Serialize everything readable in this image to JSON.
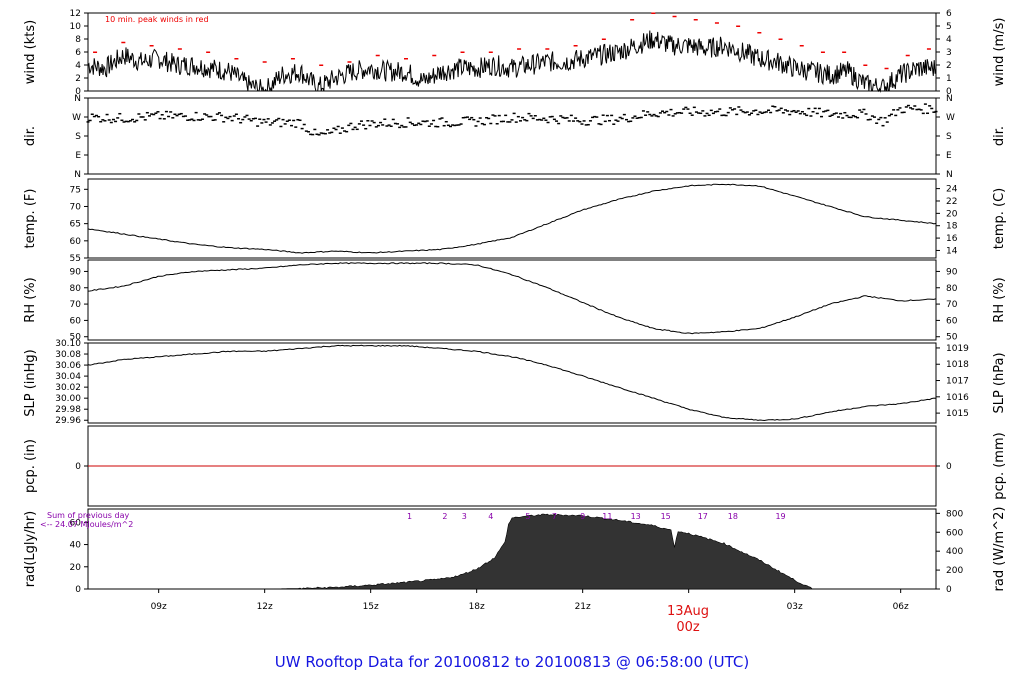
{
  "footer_title": "UW Rooftop Data for 20100812  to  20100813 @ 06:58:00  (UTC)",
  "date_marker": {
    "date": "13Aug",
    "time": "00z",
    "color": "#dd1111"
  },
  "x_axis": {
    "start_hour": 7.0,
    "end_hour": 31.0,
    "ticks": [
      "09z",
      "12z",
      "15z",
      "18z",
      "21z",
      "",
      "03z",
      "06z"
    ],
    "tick_hours": [
      9,
      12,
      15,
      18,
      21,
      24,
      27,
      30
    ]
  },
  "colors": {
    "peak": "#ee0000",
    "zero_line": "#cc0000",
    "rad_note": "#8800aa",
    "rad_fill": "#333333"
  },
  "chart_data": [
    {
      "id": "wind",
      "type": "line",
      "ylabel_left": "wind (kts)",
      "ylabel_right": "wind (m/s)",
      "annotation": "10 min. peak winds in red",
      "ylim": [
        0,
        12
      ],
      "yticks": [
        "0",
        "2",
        "4",
        "6",
        "8",
        "10",
        "12"
      ],
      "yticks_right": [
        "0",
        "1",
        "2",
        "3",
        "4",
        "5",
        "6"
      ],
      "series": [
        {
          "x": [
            7,
            7.5,
            8,
            8.5,
            9,
            9.5,
            10,
            10.5,
            11,
            11.5,
            12,
            12.5,
            13,
            13.5,
            14,
            14.5,
            15,
            15.5,
            16,
            16.5,
            17,
            17.5,
            18,
            18.5,
            19,
            19.5,
            20,
            20.5,
            21,
            21.5,
            22,
            22.5,
            23,
            23.5,
            24,
            24.5,
            25,
            25.5,
            26,
            26.5,
            27,
            27.5,
            28,
            28.5,
            29,
            29.5,
            30,
            30.5,
            31
          ],
          "y": [
            4,
            3.5,
            5.5,
            4.5,
            5,
            4,
            4,
            3.5,
            3,
            1,
            0,
            2.5,
            3,
            0.5,
            2,
            3,
            3.5,
            3,
            3,
            1.5,
            3,
            3.5,
            3.5,
            4,
            3.5,
            4,
            4.5,
            4.5,
            5,
            5.5,
            6,
            7,
            8,
            7,
            7,
            6.5,
            7,
            6,
            5,
            4.5,
            3.5,
            3,
            2.5,
            3,
            1,
            0.5,
            2.5,
            3.5,
            3.5
          ]
        },
        {
          "name": "10 min. peak winds",
          "x": [
            7.2,
            8,
            8.8,
            9.6,
            10.4,
            11.2,
            12,
            12.8,
            13.6,
            14.4,
            15.2,
            16,
            16.8,
            17.6,
            18.4,
            19.2,
            20,
            20.8,
            21.6,
            22.4,
            23,
            23.6,
            24.2,
            24.8,
            25.4,
            26,
            26.6,
            27.2,
            27.8,
            28.4,
            29,
            29.6,
            30.2,
            30.8
          ],
          "y": [
            6,
            7.5,
            7,
            6.5,
            6,
            5,
            4.5,
            5,
            4,
            4.5,
            5.5,
            5,
            5.5,
            6,
            6,
            6.5,
            6.5,
            7,
            8,
            11,
            12,
            11.5,
            11,
            10.5,
            10,
            9,
            8,
            7,
            6,
            6,
            4,
            3.5,
            5.5,
            6.5
          ]
        }
      ]
    },
    {
      "id": "dir",
      "type": "scatter",
      "ylabel_left": "dir.",
      "ylabel_right": "dir.",
      "ylim": [
        0,
        360
      ],
      "yticks": [
        "N",
        "E",
        "S",
        "W",
        "N"
      ],
      "yticks_right": [
        "N",
        "E",
        "S",
        "W",
        "N"
      ],
      "series": [
        {
          "x": [
            7,
            8,
            9,
            10,
            11,
            12,
            13,
            13.5,
            14,
            14.5,
            15,
            16,
            17,
            18,
            19,
            20,
            21,
            22,
            23,
            24,
            25,
            26,
            27,
            28,
            29,
            29.5,
            30,
            31
          ],
          "y": [
            270,
            265,
            275,
            275,
            270,
            245,
            245,
            180,
            200,
            230,
            240,
            245,
            245,
            250,
            270,
            265,
            255,
            260,
            290,
            295,
            295,
            300,
            300,
            285,
            285,
            250,
            310,
            310
          ]
        }
      ]
    },
    {
      "id": "temp",
      "type": "line",
      "ylabel_left": "temp. (F)",
      "ylabel_right": "temp. (C)",
      "ylim": [
        55,
        78
      ],
      "yticks": [
        "55",
        "60",
        "65",
        "70",
        "75"
      ],
      "yticks_right": [
        "14",
        "16",
        "18",
        "20",
        "22",
        "24"
      ],
      "series": [
        {
          "x": [
            7,
            8,
            9,
            10,
            11,
            12,
            13,
            14,
            15,
            16,
            17,
            18,
            19,
            20,
            21,
            22,
            23,
            24,
            25,
            26,
            27,
            28,
            29,
            30,
            31
          ],
          "y": [
            63.5,
            62,
            60.5,
            59,
            58,
            57.5,
            56.5,
            57,
            56.5,
            57,
            57.5,
            59,
            61,
            65,
            69,
            72,
            74.5,
            76,
            76.5,
            76,
            73,
            70,
            67,
            66,
            65
          ]
        }
      ]
    },
    {
      "id": "rh",
      "type": "line",
      "ylabel_left": "RH (%)",
      "ylabel_right": "RH (%)",
      "ylim": [
        48,
        97
      ],
      "yticks": [
        "50",
        "60",
        "70",
        "80",
        "90"
      ],
      "yticks_right": [
        "50",
        "60",
        "70",
        "80",
        "90"
      ],
      "series": [
        {
          "x": [
            7,
            8,
            9,
            10,
            11,
            12,
            13,
            14,
            15,
            16,
            17,
            18,
            19,
            20,
            21,
            22,
            23,
            24,
            25,
            26,
            27,
            28,
            29,
            30,
            31
          ],
          "y": [
            78,
            81,
            87,
            90,
            91,
            92,
            94,
            95,
            95,
            95,
            95,
            94,
            88,
            80,
            71,
            62,
            55,
            52,
            53,
            55,
            62,
            70,
            75,
            72,
            73
          ]
        }
      ]
    },
    {
      "id": "slp",
      "type": "line",
      "ylabel_left": "SLP (inHg)",
      "ylabel_right": "SLP (hPa)",
      "ylim": [
        29.955,
        30.1
      ],
      "yticks": [
        "29.96",
        "29.98",
        "30.00",
        "30.02",
        "30.04",
        "30.06",
        "30.08",
        "30.10"
      ],
      "yticks_right": [
        "1015",
        "1016",
        "1017",
        "1018",
        "1019"
      ],
      "series": [
        {
          "x": [
            7,
            8,
            9,
            10,
            11,
            12,
            13,
            14,
            15,
            16,
            17,
            18,
            19,
            20,
            21,
            22,
            23,
            24,
            25,
            26,
            27,
            28,
            29,
            30,
            31
          ],
          "y": [
            30.06,
            30.07,
            30.075,
            30.08,
            30.085,
            30.085,
            30.09,
            30.095,
            30.095,
            30.095,
            30.09,
            30.085,
            30.075,
            30.06,
            30.04,
            30.02,
            30.0,
            29.98,
            29.965,
            29.96,
            29.962,
            29.975,
            29.985,
            29.99,
            30.0
          ]
        }
      ]
    },
    {
      "id": "pcp",
      "type": "line",
      "ylabel_left": "pcp. (in)",
      "ylabel_right": "pcp. (mm)",
      "ylim": [
        -1,
        1
      ],
      "yticks": [
        "0"
      ],
      "yticks_right": [
        "0"
      ],
      "series": [
        {
          "x": [
            7,
            31
          ],
          "y": [
            0,
            0
          ]
        }
      ]
    },
    {
      "id": "rad",
      "type": "area",
      "ylabel_left": "rad(Lgly/hr)",
      "ylabel_right": "rad (W/m^2)",
      "ylim": [
        0,
        72
      ],
      "yticks": [
        "0",
        "20",
        "40",
        "60"
      ],
      "yticks_right": [
        "0",
        "200",
        "400",
        "600",
        "800"
      ],
      "note_lines": [
        "Sum of previous day",
        "<-- 24.07 MJoules/m^2"
      ],
      "hour_labels": [
        "1",
        "2",
        "3",
        "4",
        "5",
        "7",
        "9",
        "11",
        "13",
        "15",
        "17",
        "18",
        "19"
      ],
      "hour_label_x": [
        16.1,
        17.1,
        17.65,
        18.4,
        19.45,
        20.2,
        21.0,
        21.7,
        22.5,
        23.35,
        24.4,
        25.25,
        26.6
      ],
      "series": [
        {
          "x": [
            7,
            12,
            13,
            14,
            15,
            16,
            17,
            17.5,
            18,
            18.5,
            18.8,
            18.9,
            19,
            19.5,
            20,
            21,
            22,
            23,
            23.5,
            23.6,
            23.7,
            24,
            25,
            26,
            27,
            27.5,
            31
          ],
          "y": [
            0,
            0,
            0.5,
            1.5,
            3.5,
            6,
            9,
            12,
            18,
            28,
            42,
            58,
            64,
            66,
            67,
            66,
            62,
            57,
            53,
            38,
            52,
            50,
            41,
            26,
            8,
            0,
            0
          ]
        }
      ]
    }
  ]
}
